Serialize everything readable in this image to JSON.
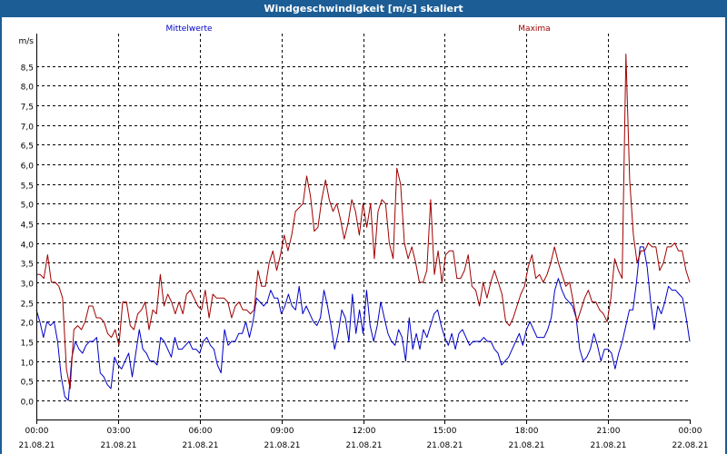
{
  "window": {
    "title": "Windgeschwindigkeit [m/s] skaliert"
  },
  "colors": {
    "titlebar": "#1c5d96",
    "mean": "#0000c8",
    "max": "#a00000",
    "grid": "#000000"
  },
  "chart_data": {
    "type": "line",
    "title": "Windgeschwindigkeit [m/s] skaliert",
    "ylabel": "m/s",
    "ylim": [
      -0.5,
      9.2
    ],
    "xlim_hours": [
      0,
      24
    ],
    "yticks": [
      0.0,
      0.5,
      1.0,
      1.5,
      2.0,
      2.5,
      3.0,
      3.5,
      4.0,
      4.5,
      5.0,
      5.5,
      6.0,
      6.5,
      7.0,
      7.5,
      8.0,
      8.5
    ],
    "ytick_labels": [
      "0,0",
      "0,5",
      "1,0",
      "1,5",
      "2,0",
      "2,5",
      "3,0",
      "3,5",
      "4,0",
      "4,5",
      "5,0",
      "5,5",
      "6,0",
      "6,5",
      "7,0",
      "7,5",
      "8,0",
      "8,5"
    ],
    "xticks": [
      {
        "hour": 0,
        "time": "00:00",
        "date": "21.08.21"
      },
      {
        "hour": 3,
        "time": "03:00",
        "date": "21.08.21"
      },
      {
        "hour": 6,
        "time": "06:00",
        "date": "21.08.21"
      },
      {
        "hour": 9,
        "time": "09:00",
        "date": "21.08.21"
      },
      {
        "hour": 12,
        "time": "12:00",
        "date": "21.08.21"
      },
      {
        "hour": 15,
        "time": "15:00",
        "date": "21.08.21"
      },
      {
        "hour": 18,
        "time": "18:00",
        "date": "21.08.21"
      },
      {
        "hour": 21,
        "time": "21:00",
        "date": "21.08.21"
      },
      {
        "hour": 24,
        "time": "00:00",
        "date": "22.08.21"
      }
    ],
    "series": [
      {
        "name": "Mittelwerte",
        "color": "#0000c8",
        "values": [
          2.3,
          2.0,
          1.6,
          2.0,
          1.9,
          2.0,
          1.5,
          0.6,
          0.1,
          0.0,
          1.1,
          1.5,
          1.3,
          1.2,
          1.4,
          1.5,
          1.5,
          1.6,
          0.7,
          0.6,
          0.4,
          0.3,
          1.1,
          0.9,
          0.8,
          1.0,
          1.2,
          0.6,
          1.2,
          1.8,
          1.3,
          1.2,
          1.0,
          1.0,
          0.9,
          1.6,
          1.5,
          1.3,
          1.1,
          1.6,
          1.3,
          1.3,
          1.4,
          1.5,
          1.3,
          1.3,
          1.2,
          1.5,
          1.6,
          1.4,
          1.3,
          0.9,
          0.7,
          1.8,
          1.4,
          1.5,
          1.5,
          1.7,
          1.7,
          2.0,
          1.6,
          2.0,
          2.6,
          2.5,
          2.4,
          2.5,
          2.8,
          2.6,
          2.6,
          2.2,
          2.4,
          2.7,
          2.4,
          2.3,
          2.9,
          2.2,
          2.4,
          2.2,
          2.0,
          1.9,
          2.1,
          2.8,
          2.4,
          1.9,
          1.3,
          1.7,
          2.3,
          2.1,
          1.5,
          2.7,
          1.7,
          2.3,
          1.7,
          2.8,
          1.9,
          1.5,
          1.9,
          2.5,
          2.1,
          1.7,
          1.5,
          1.4,
          1.8,
          1.6,
          1.0,
          2.1,
          1.3,
          1.7,
          1.3,
          1.8,
          1.6,
          1.9,
          2.2,
          2.3,
          1.9,
          1.6,
          1.4,
          1.7,
          1.3,
          1.7,
          1.8,
          1.6,
          1.4,
          1.5,
          1.5,
          1.5,
          1.6,
          1.5,
          1.5,
          1.3,
          1.2,
          0.9,
          1.0,
          1.1,
          1.3,
          1.5,
          1.7,
          1.4,
          1.8,
          2.0,
          1.8,
          1.6,
          1.6,
          1.6,
          1.8,
          2.1,
          2.8,
          3.1,
          2.8,
          2.6,
          2.5,
          2.4,
          2.1,
          1.3,
          1.0,
          1.1,
          1.3,
          1.7,
          1.4,
          1.0,
          1.3,
          1.3,
          1.2,
          0.8,
          1.2,
          1.5,
          1.9,
          2.3,
          2.3,
          3.0,
          3.9,
          3.9,
          3.4,
          2.5,
          1.8,
          2.4,
          2.2,
          2.5,
          2.9,
          2.8,
          2.8,
          2.7,
          2.6,
          2.1,
          1.5
        ]
      },
      {
        "name": "Maxima",
        "color": "#a00000",
        "values": [
          3.2,
          3.2,
          3.1,
          3.7,
          3.0,
          3.0,
          2.9,
          2.6,
          0.8,
          0.3,
          1.8,
          1.9,
          1.8,
          2.0,
          2.4,
          2.4,
          2.1,
          2.1,
          2.0,
          1.7,
          1.6,
          1.8,
          1.4,
          2.5,
          2.5,
          1.9,
          1.8,
          2.2,
          2.3,
          2.5,
          1.8,
          2.3,
          2.2,
          3.2,
          2.4,
          2.7,
          2.5,
          2.2,
          2.5,
          2.2,
          2.7,
          2.8,
          2.6,
          2.4,
          2.3,
          2.8,
          2.1,
          2.7,
          2.6,
          2.6,
          2.6,
          2.5,
          2.1,
          2.4,
          2.5,
          2.3,
          2.3,
          2.2,
          2.3,
          3.3,
          2.9,
          2.9,
          3.5,
          3.8,
          3.3,
          3.7,
          4.2,
          3.8,
          4.2,
          4.8,
          4.9,
          5.0,
          5.7,
          5.2,
          4.3,
          4.4,
          5.1,
          5.6,
          5.1,
          4.8,
          5.0,
          4.6,
          4.1,
          4.5,
          5.1,
          4.8,
          4.2,
          5.0,
          4.4,
          5.0,
          3.6,
          4.8,
          5.1,
          5.0,
          4.0,
          3.6,
          5.9,
          5.5,
          4.0,
          3.6,
          3.9,
          3.5,
          3.0,
          3.0,
          3.3,
          5.1,
          3.2,
          3.8,
          3.0,
          3.7,
          3.8,
          3.8,
          3.1,
          3.1,
          3.3,
          3.7,
          2.9,
          2.8,
          2.4,
          3.0,
          2.6,
          3.0,
          3.3,
          3.0,
          2.7,
          2.0,
          1.9,
          2.1,
          2.4,
          2.7,
          2.9,
          3.4,
          3.7,
          3.1,
          3.2,
          3.0,
          3.2,
          3.5,
          3.9,
          3.5,
          3.2,
          2.9,
          3.0,
          2.5,
          2.0,
          2.3,
          2.6,
          2.8,
          2.5,
          2.5,
          2.3,
          2.2,
          2.0,
          2.6,
          3.6,
          3.3,
          3.1,
          8.8,
          5.6,
          4.2,
          3.5,
          3.8,
          3.8,
          4.0,
          3.9,
          3.9,
          3.3,
          3.5,
          3.9,
          3.9,
          4.0,
          3.8,
          3.8,
          3.3,
          3.0
        ]
      }
    ]
  }
}
